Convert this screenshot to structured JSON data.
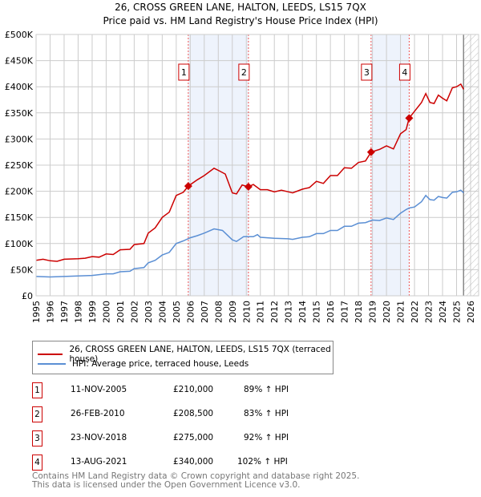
{
  "chart_data": {
    "type": "line",
    "title": "26, CROSS GREEN LANE, HALTON, LEEDS, LS15 7QX",
    "subtitle": "Price paid vs. HM Land Registry's House Price Index (HPI)",
    "xlim": [
      1995,
      2026
    ],
    "ylim": [
      0,
      500000
    ],
    "x_ticks": [
      "1995",
      "1996",
      "1997",
      "1998",
      "1999",
      "2000",
      "2001",
      "2002",
      "2003",
      "2004",
      "2005",
      "2006",
      "2007",
      "2008",
      "2009",
      "2010",
      "2011",
      "2012",
      "2013",
      "2014",
      "2015",
      "2016",
      "2017",
      "2018",
      "2019",
      "2020",
      "2021",
      "2022",
      "2023",
      "2024",
      "2025",
      "2026"
    ],
    "y_ticks": [
      {
        "v": 0,
        "label": "£0"
      },
      {
        "v": 50000,
        "label": "£50K"
      },
      {
        "v": 100000,
        "label": "£100K"
      },
      {
        "v": 150000,
        "label": "£150K"
      },
      {
        "v": 200000,
        "label": "£200K"
      },
      {
        "v": 250000,
        "label": "£250K"
      },
      {
        "v": 300000,
        "label": "£300K"
      },
      {
        "v": 350000,
        "label": "£350K"
      },
      {
        "v": 400000,
        "label": "£400K"
      },
      {
        "v": 450000,
        "label": "£450K"
      },
      {
        "v": 500000,
        "label": "£500K"
      }
    ],
    "grid": true,
    "shaded_ranges": [
      [
        2005.86,
        2010.15
      ],
      [
        2018.9,
        2021.62
      ]
    ],
    "forecast_from": 2025.5,
    "series": [
      {
        "name": "26, CROSS GREEN LANE, HALTON, LEEDS, LS15 7QX (terraced house)",
        "color": "#cc0000",
        "x": [
          1995,
          1995.5,
          1996,
          1996.5,
          1997,
          1998,
          1998.5,
          1999,
          1999.5,
          2000,
          2000.5,
          2001,
          2001.7,
          2002,
          2002.7,
          2003,
          2003.5,
          2004,
          2004.5,
          2005,
          2005.5,
          2005.86,
          2006.5,
          2007,
          2007.7,
          2008,
          2008.5,
          2009,
          2009.3,
          2009.7,
          2010.15,
          2010.5,
          2011,
          2011.5,
          2012,
          2012.5,
          2013,
          2013.3,
          2014,
          2014.5,
          2015,
          2015.5,
          2016,
          2016.5,
          2017,
          2017.5,
          2018,
          2018.5,
          2018.9,
          2019.5,
          2020,
          2020.5,
          2021,
          2021.4,
          2021.62,
          2022,
          2022.5,
          2022.8,
          2023.1,
          2023.4,
          2023.7,
          2024,
          2024.3,
          2024.7,
          2025,
          2025.3,
          2025.5
        ],
        "y": [
          68,
          70,
          67,
          66,
          70,
          71,
          72,
          75,
          74,
          80,
          79,
          88,
          89,
          98,
          100,
          120,
          130,
          150,
          160,
          192,
          198,
          210,
          222,
          230,
          244,
          240,
          233,
          197,
          195,
          212,
          208.5,
          213,
          203,
          203,
          199,
          202,
          199,
          197,
          204,
          207,
          219,
          215,
          230,
          230,
          245,
          244,
          255,
          258,
          275,
          280,
          287,
          281,
          310,
          318,
          340,
          353,
          370,
          387,
          370,
          368,
          384,
          378,
          373,
          398,
          400,
          405,
          395
        ]
      },
      {
        "name": "HPI: Average price, terraced house, Leeds",
        "color": "#5b8fd4",
        "x": [
          1995,
          1996,
          1997,
          1998,
          1999,
          2000,
          2000.5,
          2001,
          2001.7,
          2002,
          2002.7,
          2003,
          2003.5,
          2004,
          2004.5,
          2005,
          2005.5,
          2006,
          2006.5,
          2007,
          2007.7,
          2008.3,
          2009,
          2009.3,
          2009.8,
          2010.5,
          2010.8,
          2011,
          2012,
          2013,
          2013.3,
          2014,
          2014.5,
          2015,
          2015.5,
          2016,
          2016.5,
          2017,
          2017.5,
          2018,
          2018.5,
          2019,
          2019.5,
          2020,
          2020.5,
          2021,
          2021.4,
          2021.62,
          2022,
          2022.5,
          2022.8,
          2023.1,
          2023.4,
          2023.7,
          2024,
          2024.3,
          2024.7,
          2025,
          2025.3,
          2025.5
        ],
        "y": [
          37,
          36,
          37,
          38,
          39,
          42,
          42,
          46,
          47,
          52,
          54,
          63,
          68,
          78,
          83,
          100,
          105,
          111,
          115,
          120,
          128,
          125,
          107,
          104,
          113,
          113,
          117,
          112,
          110,
          109,
          108,
          112,
          113,
          119,
          119,
          125,
          125,
          133,
          133,
          139,
          140,
          145,
          144,
          149,
          146,
          158,
          165,
          168,
          170,
          180,
          192,
          184,
          183,
          190,
          188,
          187,
          198,
          199,
          202,
          197
        ]
      }
    ],
    "y_units_multiplier": 1000
  },
  "sales": [
    {
      "num": "1",
      "date": "11-NOV-2005",
      "x": 2005.86,
      "price": "£210,000",
      "value": 210,
      "hpi": "89% ↑ HPI"
    },
    {
      "num": "2",
      "date": "26-FEB-2010",
      "x": 2010.15,
      "price": "£208,500",
      "value": 208.5,
      "hpi": "83% ↑ HPI"
    },
    {
      "num": "3",
      "date": "23-NOV-2018",
      "x": 2018.9,
      "price": "£275,000",
      "value": 275,
      "hpi": "92% ↑ HPI"
    },
    {
      "num": "4",
      "date": "13-AUG-2021",
      "x": 2021.62,
      "price": "£340,000",
      "value": 340,
      "hpi": "102% ↑ HPI"
    }
  ],
  "legend": {
    "red": "26, CROSS GREEN LANE, HALTON, LEEDS, LS15 7QX (terraced house)",
    "blue": "HPI: Average price, terraced house, Leeds"
  },
  "footer": {
    "line1": "Contains HM Land Registry data © Crown copyright and database right 2025.",
    "line2": "This data is licensed under the Open Government Licence v3.0."
  }
}
